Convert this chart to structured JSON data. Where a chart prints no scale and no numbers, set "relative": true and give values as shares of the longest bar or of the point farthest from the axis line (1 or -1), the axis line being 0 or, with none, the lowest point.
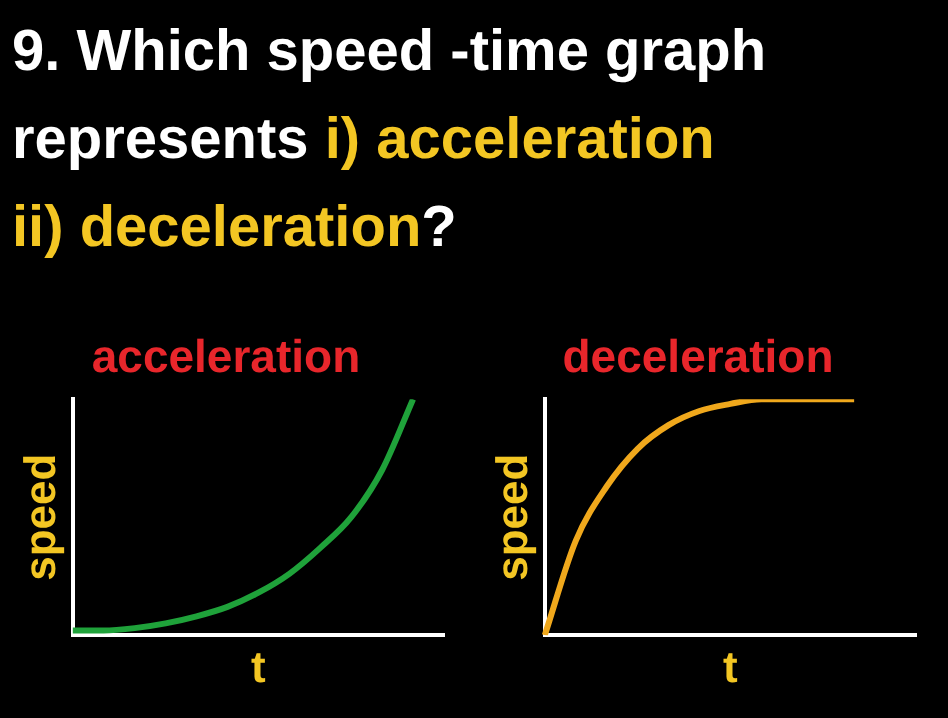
{
  "chart_data": [
    {
      "type": "line",
      "title": "acceleration",
      "xlabel": "t",
      "ylabel": "speed",
      "relative": true,
      "legend": false,
      "marker": "none",
      "annotations": [
        "9. Which speed -time graph",
        "represents ",
        "i) acceleration",
        "ii) deceleration",
        "?"
      ],
      "categories": [
        null,
        null,
        null,
        null,
        null,
        null,
        null,
        null,
        null,
        null,
        null,
        null,
        null
      ],
      "series": [
        {
          "color": "#1fa23a",
          "values": [
            0.02,
            0.02,
            0.03,
            0.05,
            0.08,
            0.12,
            0.18,
            0.26,
            0.37,
            0.5,
            0.7,
            1,
            null
          ]
        }
      ]
    },
    {
      "type": "line",
      "title": "deceleration",
      "xlabel": "t",
      "ylabel": "speed",
      "relative": true,
      "legend": false,
      "marker": "none",
      "categories": [
        null,
        null,
        null,
        null,
        null,
        null,
        null,
        null,
        null,
        null,
        null,
        null,
        null
      ],
      "series": [
        {
          "color": "#f0a81c",
          "values": [
            0,
            0.4,
            0.63,
            0.79,
            0.89,
            0.95,
            0.98,
            1,
            1,
            1,
            1,
            null,
            null
          ]
        }
      ]
    }
  ]
}
